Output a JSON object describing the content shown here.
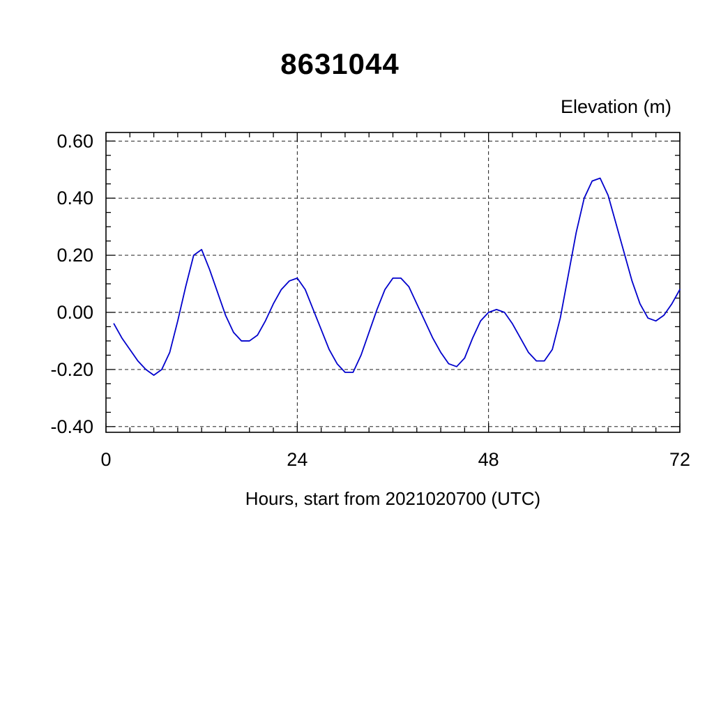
{
  "page": {
    "background": "#ffffff"
  },
  "chart_data": {
    "type": "line",
    "title": "8631044",
    "y_axis_title": "Elevation (m)",
    "xlabel": "Hours, start from 2021020700 (UTC)",
    "line_color": "#0000cc",
    "axis_color": "#000000",
    "grid": true,
    "legend_position": "none",
    "xlim": [
      0,
      72
    ],
    "ylim": [
      -0.42,
      0.63
    ],
    "x_major_ticks": [
      0,
      24,
      48,
      72
    ],
    "x_tick_labels": [
      "0",
      "24",
      "48",
      "72"
    ],
    "x_minor_step": 3,
    "y_major_ticks": [
      -0.4,
      -0.2,
      0.0,
      0.2,
      0.4,
      0.6
    ],
    "y_tick_labels": [
      "-0.40",
      "-0.20",
      "0.00",
      "0.20",
      "0.40",
      "0.60"
    ],
    "y_minor_step": 0.05,
    "x": [
      1,
      2,
      3,
      4,
      5,
      6,
      7,
      8,
      9,
      10,
      11,
      12,
      13,
      14,
      15,
      16,
      17,
      18,
      19,
      20,
      21,
      22,
      23,
      24,
      25,
      26,
      27,
      28,
      29,
      30,
      31,
      32,
      33,
      34,
      35,
      36,
      37,
      38,
      39,
      40,
      41,
      42,
      43,
      44,
      45,
      46,
      47,
      48,
      49,
      50,
      51,
      52,
      53,
      54,
      55,
      56,
      57,
      58,
      59,
      60,
      61,
      62,
      63,
      64,
      65,
      66,
      67,
      68,
      69,
      70,
      71,
      72
    ],
    "y": [
      -0.04,
      -0.09,
      -0.13,
      -0.17,
      -0.2,
      -0.22,
      -0.2,
      -0.14,
      -0.03,
      0.09,
      0.2,
      0.22,
      0.15,
      0.07,
      -0.01,
      -0.07,
      -0.1,
      -0.1,
      -0.08,
      -0.03,
      0.03,
      0.08,
      0.11,
      0.12,
      0.08,
      0.01,
      -0.06,
      -0.13,
      -0.18,
      -0.21,
      -0.21,
      -0.15,
      -0.07,
      0.01,
      0.08,
      0.12,
      0.12,
      0.09,
      0.03,
      -0.03,
      -0.09,
      -0.14,
      -0.18,
      -0.19,
      -0.16,
      -0.09,
      -0.03,
      0.0,
      0.01,
      0.0,
      -0.04,
      -0.09,
      -0.14,
      -0.17,
      -0.17,
      -0.13,
      -0.02,
      0.13,
      0.28,
      0.4,
      0.46,
      0.47,
      0.41,
      0.31,
      0.21,
      0.11,
      0.03,
      -0.02,
      -0.03,
      -0.01,
      0.03,
      0.08
    ]
  }
}
